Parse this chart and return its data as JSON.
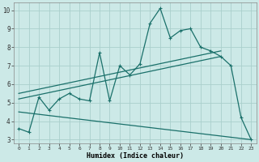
{
  "xlabel": "Humidex (Indice chaleur)",
  "bg_color": "#cce9e7",
  "grid_color": "#aacfcc",
  "line_color": "#1a706a",
  "xlim": [
    -0.5,
    23.5
  ],
  "ylim": [
    2.8,
    10.4
  ],
  "xticks": [
    0,
    1,
    2,
    3,
    4,
    5,
    6,
    7,
    8,
    9,
    10,
    11,
    12,
    13,
    14,
    15,
    16,
    17,
    18,
    19,
    20,
    21,
    22,
    23
  ],
  "yticks": [
    3,
    4,
    5,
    6,
    7,
    8,
    9,
    10
  ],
  "line1_x": [
    0,
    1,
    2,
    3,
    4,
    5,
    6,
    7,
    8,
    9,
    10,
    11,
    12,
    13,
    14,
    15,
    16,
    17,
    18,
    19,
    20,
    21,
    22,
    23
  ],
  "line1_y": [
    3.6,
    3.4,
    5.3,
    4.6,
    5.2,
    5.5,
    5.2,
    5.1,
    7.7,
    5.1,
    7.0,
    6.5,
    7.1,
    9.3,
    10.1,
    8.5,
    8.9,
    9.0,
    8.0,
    7.8,
    7.5,
    7.0,
    4.2,
    3.0
  ],
  "line2_x": [
    0,
    20
  ],
  "line2_y": [
    5.5,
    7.8
  ],
  "line3_x": [
    0,
    20
  ],
  "line3_y": [
    5.2,
    7.5
  ],
  "line4_x": [
    0,
    23
  ],
  "line4_y": [
    4.5,
    3.0
  ]
}
